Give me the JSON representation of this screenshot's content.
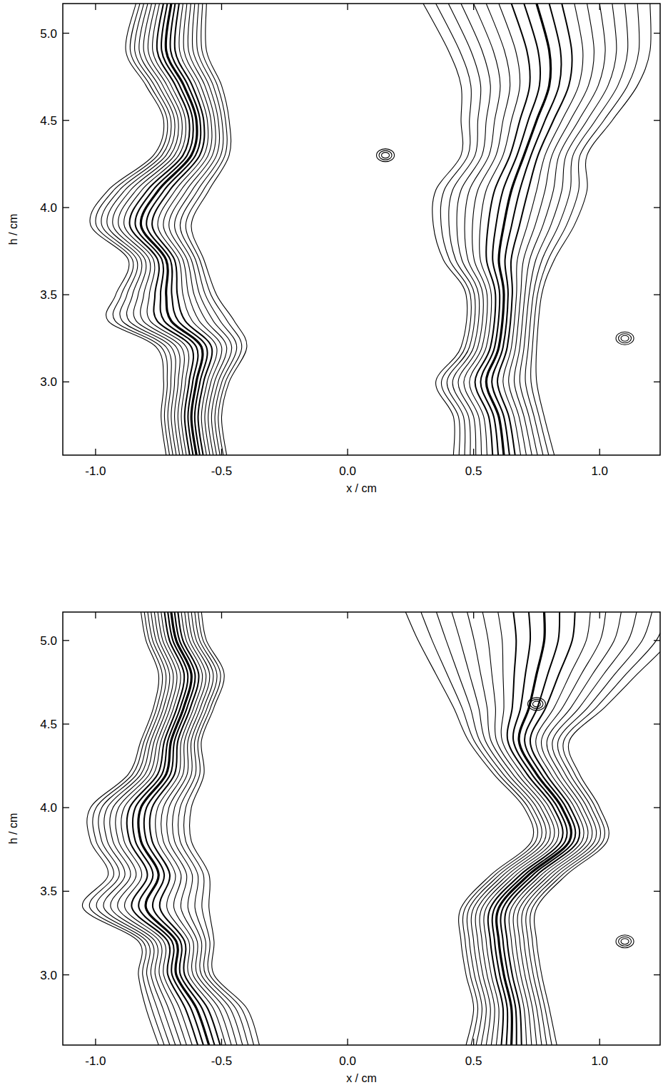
{
  "chart_data": [
    {
      "type": "contour",
      "xlabel": "x / cm",
      "ylabel": "h / cm",
      "xlim": [
        -1.13,
        1.24
      ],
      "ylim": [
        2.58,
        5.17
      ],
      "xticks": [
        {
          "value": -1,
          "label": "-1.0"
        },
        {
          "value": -0.5,
          "label": "-0.5"
        },
        {
          "value": 0,
          "label": "0.0"
        },
        {
          "value": 0.5,
          "label": "0.5"
        },
        {
          "value": 1,
          "label": "1.0"
        }
      ],
      "yticks": [
        {
          "value": 3,
          "label": "3.0"
        },
        {
          "value": 3.5,
          "label": "3.5"
        },
        {
          "value": 4,
          "label": "4.0"
        },
        {
          "value": 4.5,
          "label": "4.5"
        },
        {
          "value": 5,
          "label": "5.0"
        }
      ],
      "color": "#000000",
      "series": [
        {
          "h": [
            2.58,
            2.8,
            3.0,
            3.2,
            3.35,
            3.5,
            3.7,
            3.9,
            4.1,
            4.3,
            4.5,
            4.7,
            4.9,
            5.17
          ],
          "x": [
            -0.6,
            -0.62,
            -0.6,
            -0.58,
            -0.7,
            -0.72,
            -0.72,
            -0.82,
            -0.75,
            -0.62,
            -0.6,
            -0.65,
            -0.72,
            -0.7
          ],
          "width": [
            0.12,
            0.12,
            0.13,
            0.18,
            0.25,
            0.2,
            0.15,
            0.2,
            0.2,
            0.15,
            0.13,
            0.15,
            0.16,
            0.14
          ]
        },
        {
          "h": [
            2.58,
            2.8,
            3.0,
            3.2,
            3.5,
            3.7,
            3.9,
            4.1,
            4.3,
            4.5,
            4.7,
            4.9,
            5.17
          ],
          "x": [
            0.62,
            0.6,
            0.55,
            0.6,
            0.62,
            0.6,
            0.62,
            0.65,
            0.7,
            0.75,
            0.8,
            0.8,
            0.75
          ],
          "width": [
            0.2,
            0.18,
            0.2,
            0.15,
            0.15,
            0.22,
            0.28,
            0.3,
            0.25,
            0.3,
            0.35,
            0.4,
            0.45
          ]
        }
      ],
      "islands": [
        {
          "x": 0.15,
          "h": 4.3
        },
        {
          "x": 1.1,
          "h": 3.25
        }
      ]
    },
    {
      "type": "contour",
      "xlabel": "x / cm",
      "ylabel": "h / cm",
      "xlim": [
        -1.13,
        1.24
      ],
      "ylim": [
        2.58,
        5.17
      ],
      "xticks": [
        {
          "value": -1,
          "label": "-1.0"
        },
        {
          "value": -0.5,
          "label": "-0.5"
        },
        {
          "value": 0,
          "label": "0.0"
        },
        {
          "value": 0.5,
          "label": "0.5"
        },
        {
          "value": 1,
          "label": "1.0"
        }
      ],
      "yticks": [
        {
          "value": 3,
          "label": "3.0"
        },
        {
          "value": 3.5,
          "label": "3.5"
        },
        {
          "value": 4,
          "label": "4.0"
        },
        {
          "value": 4.5,
          "label": "4.5"
        },
        {
          "value": 5,
          "label": "5.0"
        }
      ],
      "color": "#000000",
      "series": [
        {
          "h": [
            2.58,
            2.8,
            3.0,
            3.2,
            3.4,
            3.6,
            3.8,
            4.0,
            4.2,
            4.4,
            4.6,
            4.8,
            5.0,
            5.17
          ],
          "x": [
            -0.55,
            -0.6,
            -0.68,
            -0.68,
            -0.8,
            -0.75,
            -0.82,
            -0.82,
            -0.72,
            -0.7,
            -0.65,
            -0.62,
            -0.68,
            -0.7
          ],
          "width": [
            0.2,
            0.2,
            0.15,
            0.15,
            0.25,
            0.2,
            0.2,
            0.2,
            0.15,
            0.12,
            0.12,
            0.13,
            0.12,
            0.12
          ]
        },
        {
          "h": [
            2.58,
            2.8,
            3.0,
            3.2,
            3.4,
            3.6,
            3.8,
            4.0,
            4.2,
            4.4,
            4.6,
            4.8,
            5.0,
            5.17
          ],
          "x": [
            0.65,
            0.65,
            0.62,
            0.6,
            0.6,
            0.72,
            0.88,
            0.85,
            0.75,
            0.68,
            0.72,
            0.75,
            0.78,
            0.78
          ],
          "width": [
            0.18,
            0.15,
            0.15,
            0.15,
            0.15,
            0.15,
            0.15,
            0.15,
            0.17,
            0.2,
            0.3,
            0.4,
            0.5,
            0.55
          ]
        }
      ],
      "islands": [
        {
          "x": 1.1,
          "h": 3.2
        },
        {
          "x": 0.75,
          "h": 4.62
        }
      ]
    }
  ]
}
